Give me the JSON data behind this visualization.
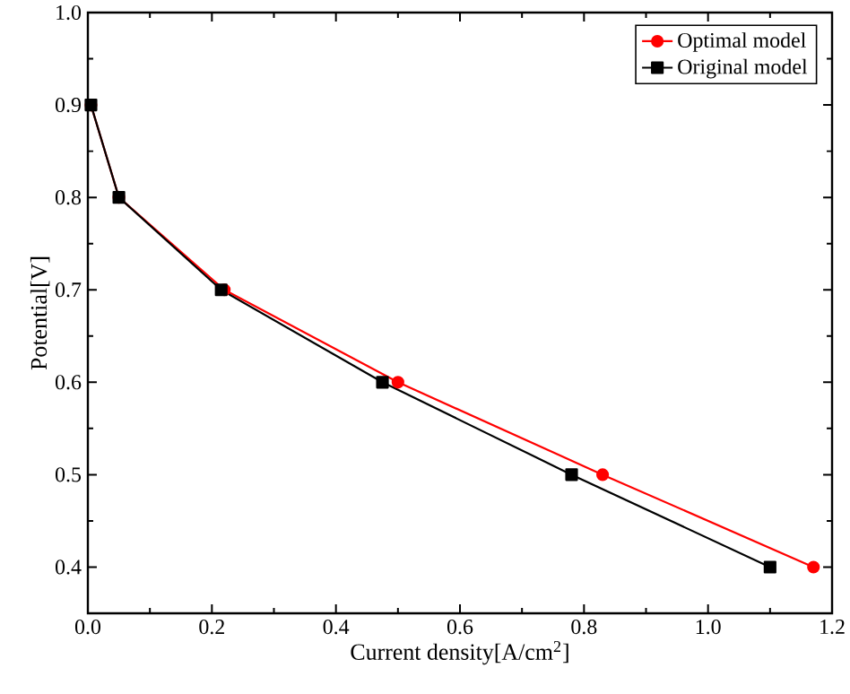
{
  "chart_data": {
    "type": "line",
    "xlabel": "Current density[A/cm$^{2}$]",
    "ylabel": "Potential[V]",
    "xlim": [
      0,
      1.2
    ],
    "ylim": [
      0.35,
      1.0
    ],
    "xticks": [
      {
        "value": 0,
        "label": "0.0"
      },
      0.2,
      0.4,
      0.6,
      0.8,
      {
        "value": 1,
        "label": "1.0"
      },
      1.2
    ],
    "yticks": [
      0.4,
      0.5,
      0.6,
      0.7,
      0.8,
      0.9,
      {
        "value": 1,
        "label": "1.0"
      }
    ],
    "legend": "top right",
    "grid": false,
    "series": [
      {
        "name": "Optimal model",
        "color": "#ff0000",
        "marker": "circle",
        "x": [
          0.005,
          0.05,
          0.22,
          0.5,
          0.83,
          1.17
        ],
        "values": [
          0.9,
          0.8,
          0.7,
          0.6,
          0.5,
          0.4
        ]
      },
      {
        "name": "Original model",
        "color": "#000000",
        "marker": "square",
        "x": [
          0.005,
          0.05,
          0.215,
          0.475,
          0.78,
          1.1
        ],
        "values": [
          0.9,
          0.8,
          0.7,
          0.6,
          0.5,
          0.4
        ]
      }
    ]
  }
}
